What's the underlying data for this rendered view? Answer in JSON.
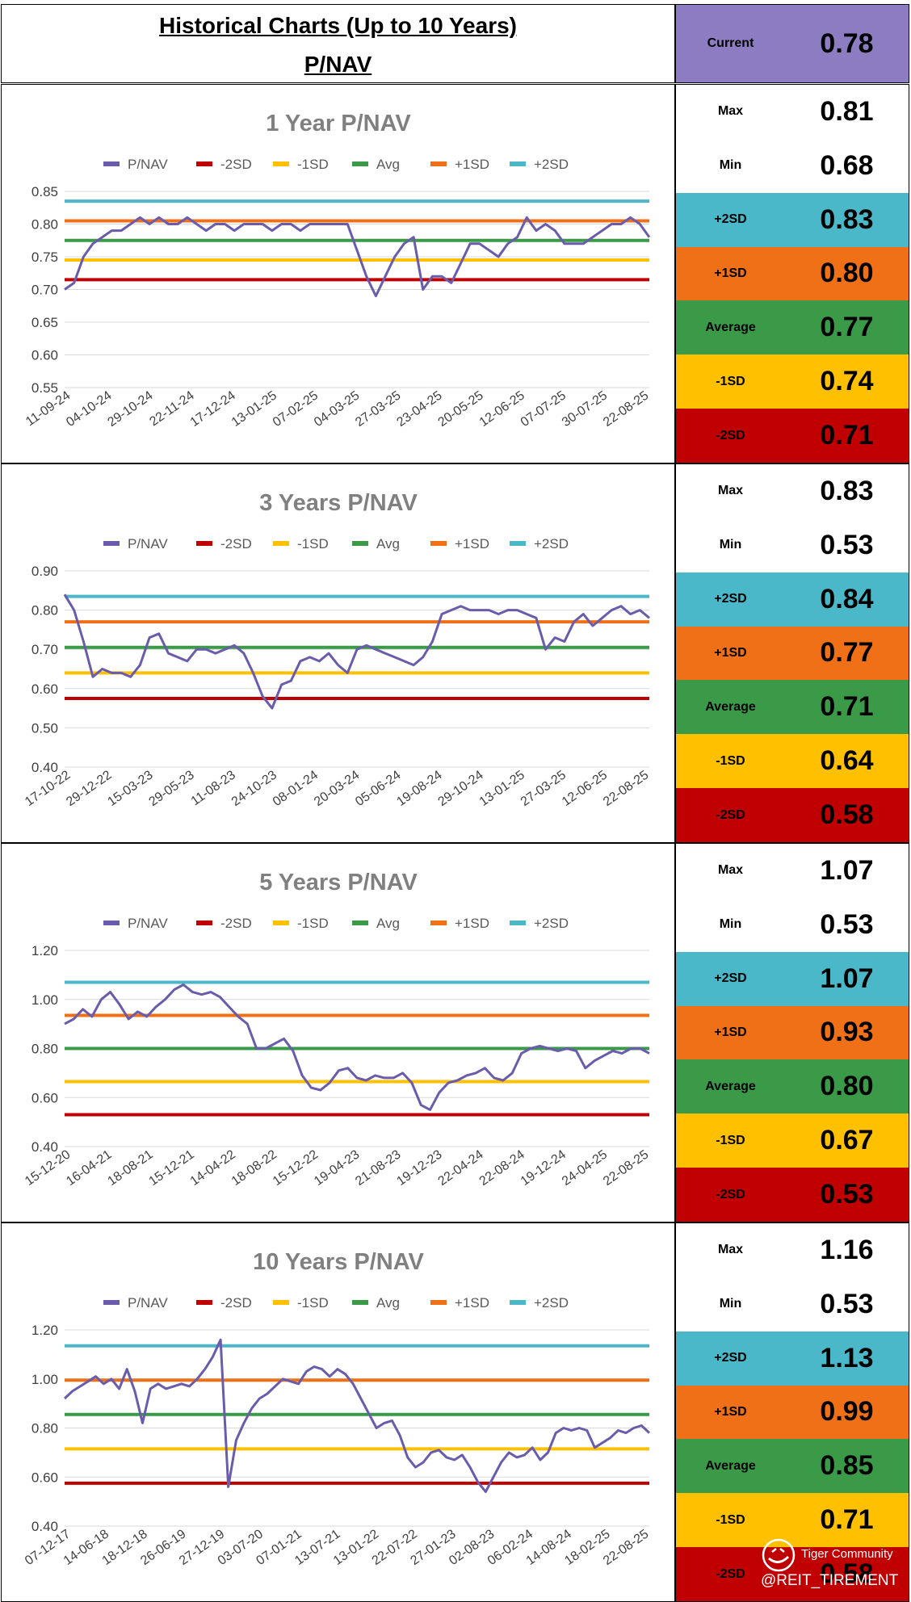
{
  "header": {
    "title": "Historical Charts (Up to 10 Years)",
    "subtitle": "P/NAV",
    "current_label": "Current",
    "current_value": "0.78"
  },
  "colors": {
    "pnav": "#6a5bab",
    "m2sd": "#c00000",
    "m1sd": "#ffc000",
    "avg": "#3a9a47",
    "p1sd": "#f07017",
    "p2sd": "#4ab8c8",
    "current_bg": "#8e7cc3",
    "grid": "#d9d9d9"
  },
  "legend": [
    "P/NAV",
    "-2SD",
    "-1SD",
    "Avg",
    "+1SD",
    "+2SD"
  ],
  "watermark": {
    "brand": "Tiger Community",
    "handle": "@REIT_TIREMENT"
  },
  "chart_data": [
    {
      "type": "line",
      "title": "1 Year P/NAV",
      "xlabel": "",
      "ylabel": "",
      "ylim": [
        0.55,
        0.85
      ],
      "yticks": [
        "0.85",
        "0.80",
        "0.75",
        "0.70",
        "0.65",
        "0.60",
        "0.55"
      ],
      "x_ticks": [
        "11-09-24",
        "04-10-24",
        "29-10-24",
        "22-11-24",
        "17-12-24",
        "13-01-25",
        "07-02-25",
        "04-03-25",
        "27-03-25",
        "23-04-25",
        "20-05-25",
        "12-06-25",
        "07-07-25",
        "30-07-25",
        "22-08-25"
      ],
      "series": [
        {
          "name": "P/NAV",
          "values": [
            0.7,
            0.71,
            0.75,
            0.77,
            0.78,
            0.79,
            0.79,
            0.8,
            0.81,
            0.8,
            0.81,
            0.8,
            0.8,
            0.81,
            0.8,
            0.79,
            0.8,
            0.8,
            0.79,
            0.8,
            0.8,
            0.8,
            0.79,
            0.8,
            0.8,
            0.79,
            0.8,
            0.8,
            0.8,
            0.8,
            0.8,
            0.76,
            0.72,
            0.69,
            0.72,
            0.75,
            0.77,
            0.78,
            0.7,
            0.72,
            0.72,
            0.71,
            0.74,
            0.77,
            0.77,
            0.76,
            0.75,
            0.77,
            0.78,
            0.81,
            0.79,
            0.8,
            0.79,
            0.77,
            0.77,
            0.77,
            0.78,
            0.79,
            0.8,
            0.8,
            0.81,
            0.8,
            0.78
          ]
        },
        {
          "name": "-2SD",
          "values": [
            0.715
          ]
        },
        {
          "name": "-1SD",
          "values": [
            0.745
          ]
        },
        {
          "name": "Avg",
          "values": [
            0.775
          ]
        },
        {
          "name": "+1SD",
          "values": [
            0.805
          ]
        },
        {
          "name": "+2SD",
          "values": [
            0.835
          ]
        }
      ],
      "stats": [
        {
          "label": "Max",
          "value": "0.81"
        },
        {
          "label": "Min",
          "value": "0.68"
        },
        {
          "label": "+2SD",
          "value": "0.83"
        },
        {
          "label": "+1SD",
          "value": "0.80"
        },
        {
          "label": "Average",
          "value": "0.77"
        },
        {
          "label": "-1SD",
          "value": "0.74"
        },
        {
          "label": "-2SD",
          "value": "0.71"
        }
      ]
    },
    {
      "type": "line",
      "title": "3 Years P/NAV",
      "xlabel": "",
      "ylabel": "",
      "ylim": [
        0.4,
        0.9
      ],
      "yticks": [
        "0.90",
        "0.80",
        "0.70",
        "0.60",
        "0.50",
        "0.40"
      ],
      "x_ticks": [
        "17-10-22",
        "29-12-22",
        "15-03-23",
        "29-05-23",
        "11-08-23",
        "24-10-23",
        "08-01-24",
        "20-03-24",
        "05-06-24",
        "19-08-24",
        "29-10-24",
        "13-01-25",
        "27-03-25",
        "12-06-25",
        "22-08-25"
      ],
      "series": [
        {
          "name": "P/NAV",
          "values": [
            0.84,
            0.8,
            0.72,
            0.63,
            0.65,
            0.64,
            0.64,
            0.63,
            0.66,
            0.73,
            0.74,
            0.69,
            0.68,
            0.67,
            0.7,
            0.7,
            0.69,
            0.7,
            0.71,
            0.69,
            0.64,
            0.58,
            0.55,
            0.61,
            0.62,
            0.67,
            0.68,
            0.67,
            0.69,
            0.66,
            0.64,
            0.7,
            0.71,
            0.7,
            0.69,
            0.68,
            0.67,
            0.66,
            0.68,
            0.72,
            0.79,
            0.8,
            0.81,
            0.8,
            0.8,
            0.8,
            0.79,
            0.8,
            0.8,
            0.79,
            0.78,
            0.7,
            0.73,
            0.72,
            0.77,
            0.79,
            0.76,
            0.78,
            0.8,
            0.81,
            0.79,
            0.8,
            0.78
          ]
        },
        {
          "name": "-2SD",
          "values": [
            0.575
          ]
        },
        {
          "name": "-1SD",
          "values": [
            0.64
          ]
        },
        {
          "name": "Avg",
          "values": [
            0.705
          ]
        },
        {
          "name": "+1SD",
          "values": [
            0.77
          ]
        },
        {
          "name": "+2SD",
          "values": [
            0.835
          ]
        }
      ],
      "stats": [
        {
          "label": "Max",
          "value": "0.83"
        },
        {
          "label": "Min",
          "value": "0.53"
        },
        {
          "label": "+2SD",
          "value": "0.84"
        },
        {
          "label": "+1SD",
          "value": "0.77"
        },
        {
          "label": "Average",
          "value": "0.71"
        },
        {
          "label": "-1SD",
          "value": "0.64"
        },
        {
          "label": "-2SD",
          "value": "0.58"
        }
      ]
    },
    {
      "type": "line",
      "title": "5 Years P/NAV",
      "xlabel": "",
      "ylabel": "",
      "ylim": [
        0.4,
        1.2
      ],
      "yticks": [
        "1.20",
        "1.00",
        "0.80",
        "0.60",
        "0.40"
      ],
      "x_ticks": [
        "15-12-20",
        "16-04-21",
        "18-08-21",
        "15-12-21",
        "14-04-22",
        "18-08-22",
        "15-12-22",
        "19-04-23",
        "21-08-23",
        "19-12-23",
        "22-04-24",
        "22-08-24",
        "19-12-24",
        "24-04-25",
        "22-08-25"
      ],
      "series": [
        {
          "name": "P/NAV",
          "values": [
            0.9,
            0.92,
            0.96,
            0.93,
            1.0,
            1.03,
            0.98,
            0.92,
            0.95,
            0.93,
            0.97,
            1.0,
            1.04,
            1.06,
            1.03,
            1.02,
            1.03,
            1.01,
            0.97,
            0.93,
            0.9,
            0.8,
            0.8,
            0.82,
            0.84,
            0.79,
            0.69,
            0.64,
            0.63,
            0.66,
            0.71,
            0.72,
            0.68,
            0.67,
            0.69,
            0.68,
            0.68,
            0.7,
            0.66,
            0.57,
            0.55,
            0.62,
            0.66,
            0.67,
            0.69,
            0.7,
            0.72,
            0.68,
            0.67,
            0.7,
            0.78,
            0.8,
            0.81,
            0.8,
            0.79,
            0.8,
            0.79,
            0.72,
            0.75,
            0.77,
            0.79,
            0.78,
            0.8,
            0.8,
            0.78
          ]
        },
        {
          "name": "-2SD",
          "values": [
            0.53
          ]
        },
        {
          "name": "-1SD",
          "values": [
            0.665
          ]
        },
        {
          "name": "Avg",
          "values": [
            0.8
          ]
        },
        {
          "name": "+1SD",
          "values": [
            0.935
          ]
        },
        {
          "name": "+2SD",
          "values": [
            1.07
          ]
        }
      ],
      "stats": [
        {
          "label": "Max",
          "value": "1.07"
        },
        {
          "label": "Min",
          "value": "0.53"
        },
        {
          "label": "+2SD",
          "value": "1.07"
        },
        {
          "label": "+1SD",
          "value": "0.93"
        },
        {
          "label": "Average",
          "value": "0.80"
        },
        {
          "label": "-1SD",
          "value": "0.67"
        },
        {
          "label": "-2SD",
          "value": "0.53"
        }
      ]
    },
    {
      "type": "line",
      "title": "10 Years P/NAV",
      "xlabel": "",
      "ylabel": "",
      "ylim": [
        0.4,
        1.2
      ],
      "yticks": [
        "1.20",
        "1.00",
        "0.80",
        "0.60",
        "0.40"
      ],
      "x_ticks": [
        "07-12-17",
        "14-06-18",
        "18-12-18",
        "26-06-19",
        "27-12-19",
        "03-07-20",
        "07-01-21",
        "13-07-21",
        "13-01-22",
        "22-07-22",
        "27-01-23",
        "02-08-23",
        "06-02-24",
        "14-08-24",
        "18-02-25",
        "22-08-25"
      ],
      "series": [
        {
          "name": "P/NAV",
          "values": [
            0.92,
            0.95,
            0.97,
            0.99,
            1.01,
            0.98,
            1.0,
            0.96,
            1.04,
            0.95,
            0.82,
            0.96,
            0.98,
            0.96,
            0.97,
            0.98,
            0.97,
            1.0,
            1.04,
            1.09,
            1.16,
            0.56,
            0.75,
            0.82,
            0.88,
            0.92,
            0.94,
            0.97,
            1.0,
            0.99,
            0.98,
            1.03,
            1.05,
            1.04,
            1.01,
            1.04,
            1.02,
            0.98,
            0.92,
            0.86,
            0.8,
            0.82,
            0.83,
            0.77,
            0.68,
            0.64,
            0.66,
            0.7,
            0.71,
            0.68,
            0.67,
            0.69,
            0.64,
            0.58,
            0.54,
            0.6,
            0.66,
            0.7,
            0.68,
            0.69,
            0.72,
            0.67,
            0.7,
            0.78,
            0.8,
            0.79,
            0.8,
            0.79,
            0.72,
            0.74,
            0.76,
            0.79,
            0.78,
            0.8,
            0.81,
            0.78
          ]
        },
        {
          "name": "-2SD",
          "values": [
            0.575
          ]
        },
        {
          "name": "-1SD",
          "values": [
            0.715
          ]
        },
        {
          "name": "Avg",
          "values": [
            0.855
          ]
        },
        {
          "name": "+1SD",
          "values": [
            0.995
          ]
        },
        {
          "name": "+2SD",
          "values": [
            1.135
          ]
        }
      ],
      "stats": [
        {
          "label": "Max",
          "value": "1.16"
        },
        {
          "label": "Min",
          "value": "0.53"
        },
        {
          "label": "+2SD",
          "value": "1.13"
        },
        {
          "label": "+1SD",
          "value": "0.99"
        },
        {
          "label": "Average",
          "value": "0.85"
        },
        {
          "label": "-1SD",
          "value": "0.71"
        },
        {
          "label": "-2SD",
          "value": "0.58"
        }
      ]
    }
  ]
}
